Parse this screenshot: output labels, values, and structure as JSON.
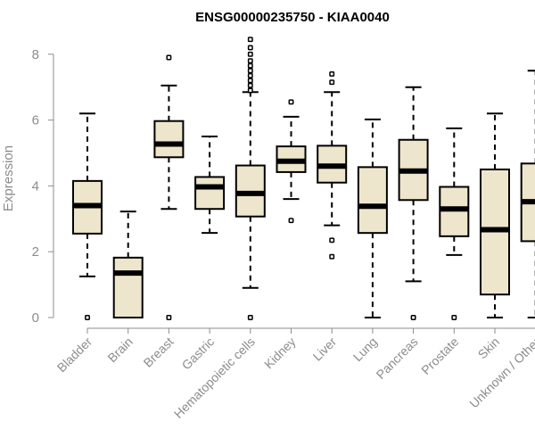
{
  "chart_data": {
    "type": "boxplot",
    "title": "ENSG00000235750 - KIAA0040",
    "xlabel": "",
    "ylabel": "Expression",
    "ylim": [
      0,
      8.6
    ],
    "yticks": [
      0,
      2,
      4,
      6,
      8
    ],
    "colors": {
      "box_fill": "#ede6cc",
      "box_stroke": "#000000",
      "axis": "#8c8c8c"
    },
    "categories": [
      "Bladder",
      "Brain",
      "Breast",
      "Gastric",
      "Hematopoietic cells",
      "Kidney",
      "Liver",
      "Lung",
      "Pancreas",
      "Prostate",
      "Skin",
      "Unknown / Other"
    ],
    "boxes": [
      {
        "category": "Bladder",
        "whisker_low": 1.25,
        "q1": 2.55,
        "median": 3.4,
        "q3": 4.15,
        "whisker_high": 6.2,
        "outliers": [
          0.0
        ]
      },
      {
        "category": "Brain",
        "whisker_low": 0.0,
        "q1": 0.0,
        "median": 1.35,
        "q3": 1.82,
        "whisker_high": 3.22,
        "outliers": []
      },
      {
        "category": "Breast",
        "whisker_low": 3.3,
        "q1": 4.87,
        "median": 5.27,
        "q3": 5.97,
        "whisker_high": 7.05,
        "outliers": [
          0.0,
          7.9
        ]
      },
      {
        "category": "Gastric",
        "whisker_low": 2.57,
        "q1": 3.3,
        "median": 3.97,
        "q3": 4.27,
        "whisker_high": 5.5,
        "outliers": []
      },
      {
        "category": "Hematopoietic cells",
        "whisker_low": 0.9,
        "q1": 3.07,
        "median": 3.77,
        "q3": 4.62,
        "whisker_high": 6.85,
        "outliers": [
          0.0,
          6.9,
          7.05,
          7.2,
          7.35,
          7.5,
          7.65,
          7.8,
          8.0,
          8.2,
          8.45
        ]
      },
      {
        "category": "Kidney",
        "whisker_low": 3.6,
        "q1": 4.42,
        "median": 4.75,
        "q3": 5.2,
        "whisker_high": 6.1,
        "outliers": [
          2.95,
          6.55
        ]
      },
      {
        "category": "Liver",
        "whisker_low": 2.8,
        "q1": 4.1,
        "median": 4.6,
        "q3": 5.22,
        "whisker_high": 6.85,
        "outliers": [
          1.85,
          2.35,
          7.15,
          7.4
        ]
      },
      {
        "category": "Lung",
        "whisker_low": 0.0,
        "q1": 2.57,
        "median": 3.38,
        "q3": 4.57,
        "whisker_high": 6.02,
        "outliers": []
      },
      {
        "category": "Pancreas",
        "whisker_low": 1.1,
        "q1": 3.57,
        "median": 4.45,
        "q3": 5.4,
        "whisker_high": 7.0,
        "outliers": [
          0.0
        ]
      },
      {
        "category": "Prostate",
        "whisker_low": 1.9,
        "q1": 2.47,
        "median": 3.3,
        "q3": 3.97,
        "whisker_high": 5.75,
        "outliers": [
          0.0
        ]
      },
      {
        "category": "Skin",
        "whisker_low": 0.0,
        "q1": 0.7,
        "median": 2.67,
        "q3": 4.5,
        "whisker_high": 6.2,
        "outliers": []
      },
      {
        "category": "Unknown / Other",
        "whisker_low": 0.0,
        "q1": 2.32,
        "median": 3.52,
        "q3": 4.68,
        "whisker_high": 7.5,
        "outliers": []
      }
    ]
  }
}
